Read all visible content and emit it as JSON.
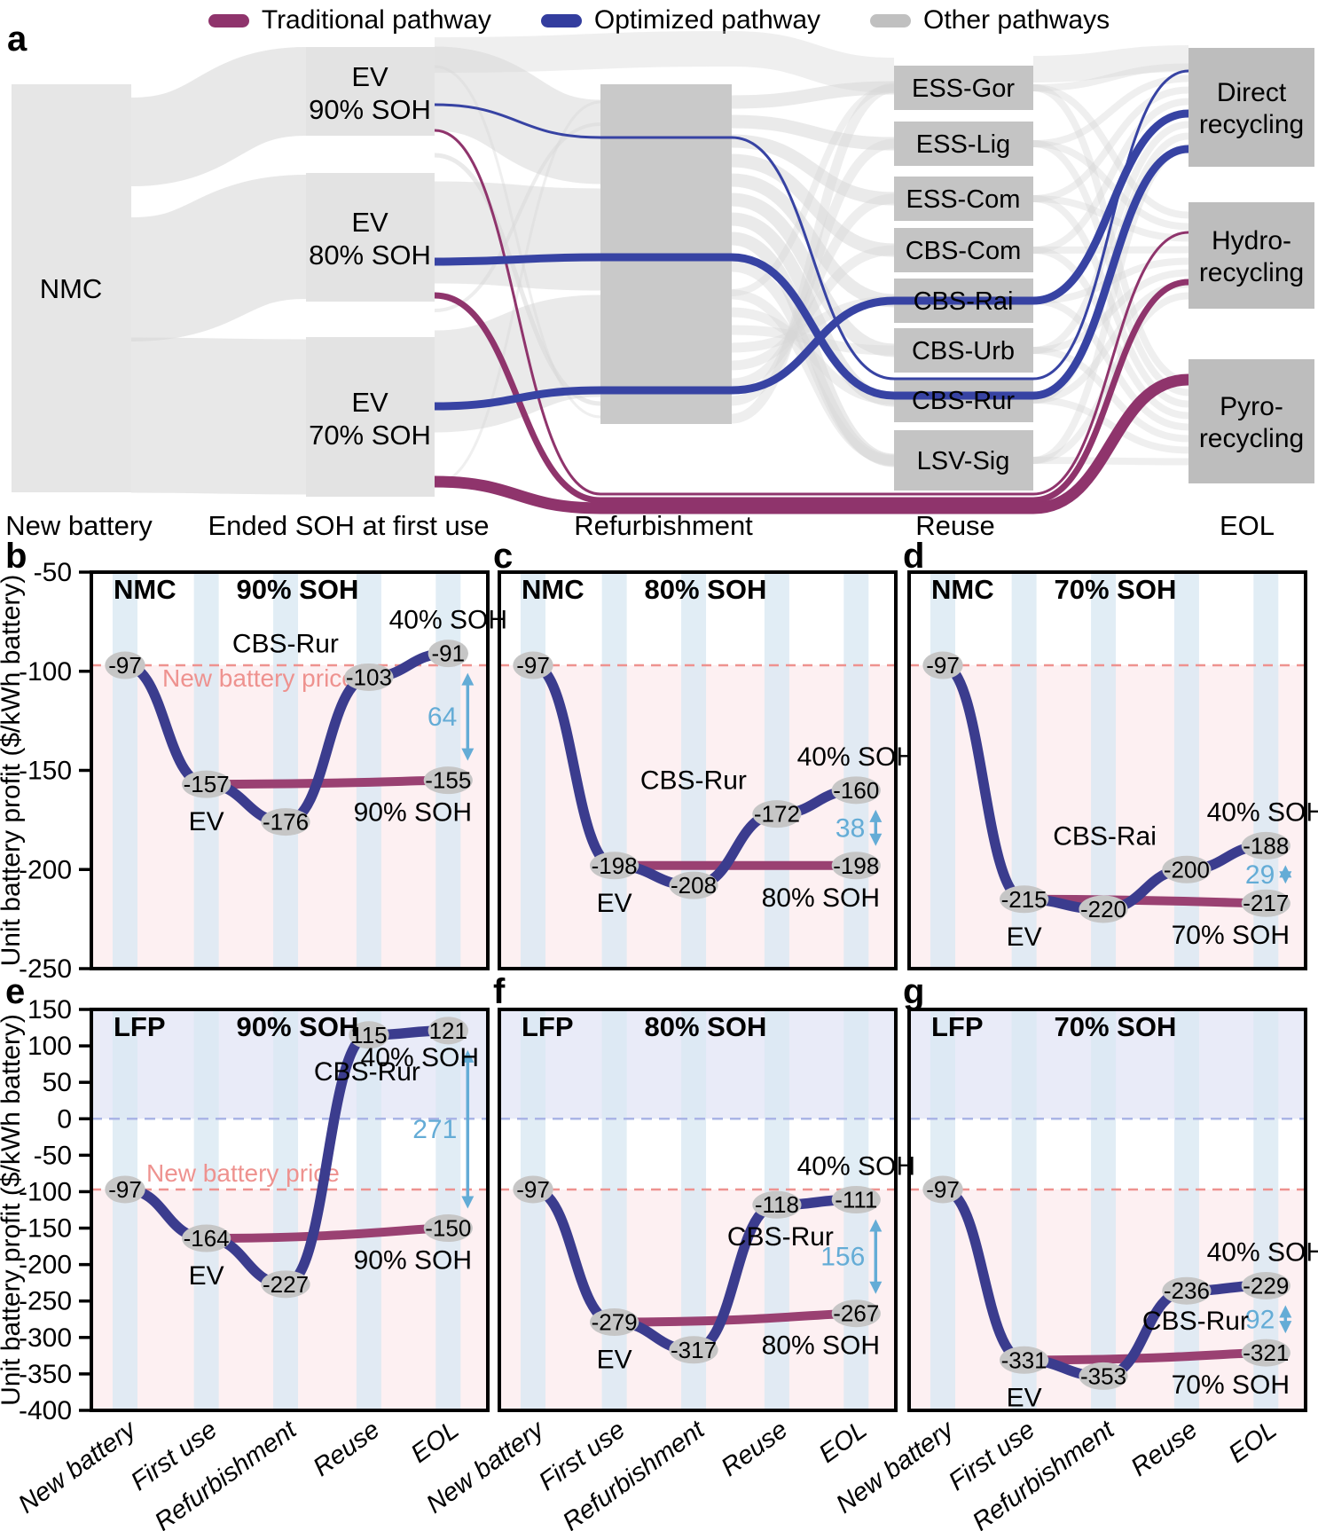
{
  "figure": {
    "panel_letters": [
      "a",
      "b",
      "c",
      "d",
      "e",
      "f",
      "g"
    ],
    "legend": [
      {
        "label": "Traditional pathway",
        "color": "#8f346c"
      },
      {
        "label": "Optimized pathway",
        "color": "#333d9e"
      },
      {
        "label": "Other pathways",
        "color": "#c0c0c0"
      }
    ]
  },
  "sankey": {
    "stage_labels": [
      "New battery",
      "Ended SOH at first use",
      "Refurbishment",
      "Reuse",
      "EOL"
    ],
    "source_node": "NMC",
    "ended_soh_nodes": [
      [
        "EV",
        "90% SOH"
      ],
      [
        "EV",
        "80% SOH"
      ],
      [
        "EV",
        "70% SOH"
      ]
    ],
    "reuse_nodes": [
      "ESS-Gor",
      "ESS-Lig",
      "ESS-Com",
      "CBS-Com",
      "CBS-Rai",
      "CBS-Urb",
      "CBS-Rur",
      "LSV-Sig"
    ],
    "eol_nodes": [
      [
        "Direct",
        "recycling"
      ],
      [
        "Hydro-",
        "recycling"
      ],
      [
        "Pyro-",
        "recycling"
      ]
    ]
  },
  "chart_data": {
    "type": "line",
    "x_stages": [
      "New battery",
      "First use",
      "Refurbishment",
      "Reuse",
      "EOL"
    ],
    "ylabel": "Unit battery profit ($/kWh battery)",
    "price_line": {
      "value": -97,
      "label": "New battery price"
    },
    "rows": [
      {
        "ymax": -50,
        "ymin": -250,
        "yticks": [
          -50,
          -100,
          -150,
          -200,
          -250
        ]
      },
      {
        "ymax": 150,
        "ymin": -400,
        "yticks": [
          150,
          100,
          50,
          0,
          -50,
          -100,
          -150,
          -200,
          -250,
          -300,
          -350,
          -400
        ]
      }
    ],
    "series_names": {
      "optimized": "Optimized pathway",
      "traditional": "Traditional pathway"
    },
    "panels": [
      {
        "id": "b",
        "row": 0,
        "col": 0,
        "chemistry": "NMC",
        "soh": "90% SOH",
        "optimized": [
          -97,
          -157,
          -176,
          -103,
          -91
        ],
        "traditional": [
          -157,
          -155
        ],
        "gap": 64,
        "labels": {
          "first_use": "EV",
          "reuse": "CBS-Rur",
          "eol_optimized": "40% SOH",
          "eol_traditional": "90% SOH"
        },
        "show_price_label": true,
        "show_yticks": true
      },
      {
        "id": "c",
        "row": 0,
        "col": 1,
        "chemistry": "NMC",
        "soh": "80% SOH",
        "optimized": [
          -97,
          -198,
          -208,
          -172,
          -160
        ],
        "traditional": [
          -198,
          -198
        ],
        "gap": 38,
        "labels": {
          "first_use": "EV",
          "reuse": "CBS-Rur",
          "eol_optimized": "40% SOH",
          "eol_traditional": "80% SOH"
        },
        "show_price_label": false,
        "show_yticks": false
      },
      {
        "id": "d",
        "row": 0,
        "col": 2,
        "chemistry": "NMC",
        "soh": "70% SOH",
        "optimized": [
          -97,
          -215,
          -220,
          -200,
          -188
        ],
        "traditional": [
          -215,
          -217
        ],
        "gap": 29,
        "labels": {
          "first_use": "EV",
          "reuse": "CBS-Rai",
          "eol_optimized": "40% SOH",
          "eol_traditional": "70% SOH"
        },
        "show_price_label": false,
        "show_yticks": false
      },
      {
        "id": "e",
        "row": 1,
        "col": 0,
        "chemistry": "LFP",
        "soh": "90% SOH",
        "optimized": [
          -97,
          -164,
          -227,
          115,
          121
        ],
        "traditional": [
          -164,
          -150
        ],
        "gap": 271,
        "labels": {
          "first_use": "EV",
          "reuse": "CBS-Rur",
          "eol_optimized": "40% SOH",
          "eol_traditional": "90% SOH"
        },
        "show_price_label": true,
        "show_yticks": true
      },
      {
        "id": "f",
        "row": 1,
        "col": 1,
        "chemistry": "LFP",
        "soh": "80% SOH",
        "optimized": [
          -97,
          -279,
          -317,
          -118,
          -111
        ],
        "traditional": [
          -279,
          -267
        ],
        "gap": 156,
        "labels": {
          "first_use": "EV",
          "reuse": "CBS-Rur",
          "eol_optimized": "40% SOH",
          "eol_traditional": "80% SOH"
        },
        "show_price_label": false,
        "show_yticks": false
      },
      {
        "id": "g",
        "row": 1,
        "col": 2,
        "chemistry": "LFP",
        "soh": "70% SOH",
        "optimized": [
          -97,
          -331,
          -353,
          -236,
          -229
        ],
        "traditional": [
          -331,
          -321
        ],
        "gap": 92,
        "labels": {
          "first_use": "EV",
          "reuse": "CBS-Rur",
          "eol_optimized": "40% SOH",
          "eol_traditional": "70% SOH"
        },
        "show_price_label": false,
        "show_yticks": false
      }
    ]
  },
  "colors": {
    "traditional": "#9a4172",
    "optimized": "#3b3c8e",
    "sankey_traditional": "#8f346c",
    "sankey_optimized": "#3743a3",
    "badge": "#c6c6c6",
    "price_dash": "#ee928f",
    "pink_fill": "#fdf0f2",
    "lavender_fill": "#e9ebf8",
    "zero_dash": "#aab4e6",
    "stripe": "#d9e9f2",
    "gap_arrow": "#64acd6",
    "gray_flow": "#d6d6d6",
    "node_light": "#e6e6e6",
    "node_mid": "#c9c9c9",
    "node_reuse": "#c4c4c4",
    "node_eol": "#bdbdbd"
  }
}
